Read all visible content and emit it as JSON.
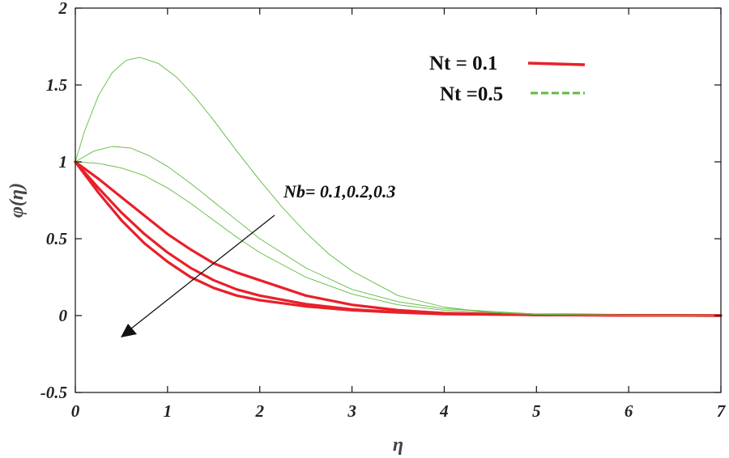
{
  "chart_data": {
    "type": "line",
    "xlabel": "η",
    "ylabel": "φ(η)",
    "xlim": [
      0,
      7
    ],
    "ylim": [
      -0.5,
      2
    ],
    "xticks": [
      "0",
      "1",
      "2",
      "3",
      "4",
      "5",
      "6",
      "7"
    ],
    "yticks": [
      "-0.5",
      "0",
      "0.5",
      "1",
      "1.5",
      "2"
    ],
    "xtick_values": [
      0,
      1,
      2,
      3,
      4,
      5,
      6,
      7
    ],
    "ytick_values": [
      -0.5,
      0,
      0.5,
      1,
      1.5,
      2
    ],
    "grid": false,
    "legend_position": "top-right",
    "legend": [
      {
        "label": "Nt = 0.1",
        "color": "#e8202a",
        "style": "solid"
      },
      {
        "label": "Nt =0.5",
        "color": "#5dbb3f",
        "style": "dashed"
      }
    ],
    "annotation": {
      "text": "Nb= 0.1,0.2,0.3",
      "arrow": "decreasing Nb direction"
    },
    "series": [
      {
        "color": "#e8202a",
        "style": "solid",
        "width": 3.2,
        "points": [
          [
            0,
            1
          ],
          [
            0.25,
            0.8
          ],
          [
            0.5,
            0.62
          ],
          [
            0.75,
            0.47
          ],
          [
            1,
            0.35
          ],
          [
            1.25,
            0.25
          ],
          [
            1.5,
            0.18
          ],
          [
            1.75,
            0.13
          ],
          [
            2,
            0.1
          ],
          [
            2.5,
            0.06
          ],
          [
            3,
            0.035
          ],
          [
            3.5,
            0.02
          ],
          [
            4,
            0.01
          ],
          [
            5,
            0.004
          ],
          [
            6,
            0.001
          ],
          [
            7,
            0
          ]
        ]
      },
      {
        "color": "#e8202a",
        "style": "solid",
        "width": 3.2,
        "points": [
          [
            0,
            1
          ],
          [
            0.25,
            0.83
          ],
          [
            0.5,
            0.67
          ],
          [
            0.75,
            0.53
          ],
          [
            1,
            0.41
          ],
          [
            1.25,
            0.31
          ],
          [
            1.5,
            0.23
          ],
          [
            1.75,
            0.17
          ],
          [
            2,
            0.13
          ],
          [
            2.5,
            0.075
          ],
          [
            3,
            0.04
          ],
          [
            3.5,
            0.022
          ],
          [
            4,
            0.012
          ],
          [
            5,
            0.005
          ],
          [
            6,
            0.002
          ],
          [
            7,
            0
          ]
        ]
      },
      {
        "color": "#e8202a",
        "style": "solid",
        "width": 3.2,
        "points": [
          [
            0,
            1
          ],
          [
            0.25,
            0.89
          ],
          [
            0.5,
            0.77
          ],
          [
            0.75,
            0.65
          ],
          [
            1,
            0.53
          ],
          [
            1.25,
            0.43
          ],
          [
            1.5,
            0.34
          ],
          [
            1.75,
            0.28
          ],
          [
            2,
            0.23
          ],
          [
            2.5,
            0.13
          ],
          [
            3,
            0.07
          ],
          [
            3.5,
            0.035
          ],
          [
            4,
            0.016
          ],
          [
            5,
            0.005
          ],
          [
            6,
            0.002
          ],
          [
            7,
            0
          ]
        ]
      },
      {
        "color": "#5dbb3f",
        "style": "solid",
        "width": 0.9,
        "points": [
          [
            0,
            1
          ],
          [
            0.25,
            0.99
          ],
          [
            0.5,
            0.96
          ],
          [
            0.75,
            0.91
          ],
          [
            1,
            0.83
          ],
          [
            1.25,
            0.73
          ],
          [
            1.5,
            0.62
          ],
          [
            1.75,
            0.51
          ],
          [
            2,
            0.41
          ],
          [
            2.5,
            0.25
          ],
          [
            3,
            0.14
          ],
          [
            3.5,
            0.07
          ],
          [
            4,
            0.035
          ],
          [
            5,
            0.008
          ],
          [
            6,
            0.002
          ],
          [
            7,
            0
          ]
        ]
      },
      {
        "color": "#5dbb3f",
        "style": "solid",
        "width": 0.9,
        "points": [
          [
            0,
            1
          ],
          [
            0.2,
            1.07
          ],
          [
            0.4,
            1.1
          ],
          [
            0.6,
            1.09
          ],
          [
            0.8,
            1.04
          ],
          [
            1,
            0.97
          ],
          [
            1.25,
            0.86
          ],
          [
            1.5,
            0.74
          ],
          [
            1.75,
            0.62
          ],
          [
            2,
            0.5
          ],
          [
            2.5,
            0.31
          ],
          [
            3,
            0.17
          ],
          [
            3.5,
            0.09
          ],
          [
            4,
            0.045
          ],
          [
            5,
            0.01
          ],
          [
            6,
            0.002
          ],
          [
            7,
            0
          ]
        ]
      },
      {
        "color": "#5dbb3f",
        "style": "solid",
        "width": 0.9,
        "points": [
          [
            0,
            1
          ],
          [
            0.1,
            1.2
          ],
          [
            0.25,
            1.43
          ],
          [
            0.4,
            1.58
          ],
          [
            0.55,
            1.66
          ],
          [
            0.7,
            1.68
          ],
          [
            0.9,
            1.64
          ],
          [
            1.1,
            1.55
          ],
          [
            1.3,
            1.42
          ],
          [
            1.5,
            1.27
          ],
          [
            1.75,
            1.07
          ],
          [
            2,
            0.88
          ],
          [
            2.25,
            0.7
          ],
          [
            2.5,
            0.54
          ],
          [
            2.75,
            0.4
          ],
          [
            3,
            0.29
          ],
          [
            3.5,
            0.13
          ],
          [
            4,
            0.055
          ],
          [
            4.5,
            0.02
          ],
          [
            5,
            0.007
          ],
          [
            6,
            0.001
          ],
          [
            7,
            0
          ]
        ]
      }
    ]
  }
}
